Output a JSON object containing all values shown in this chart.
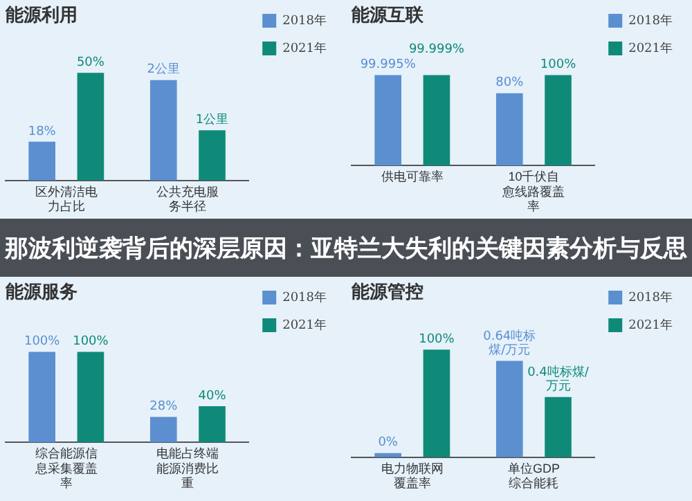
{
  "chart_data": [
    {
      "type": "bar",
      "title": "能源利用",
      "legend": "top right",
      "categories": [
        "区外清洁电力占比",
        "公共充电服务半径"
      ],
      "series": [
        {
          "name": "2018年",
          "color": "#5b8fd0",
          "values": [
            18,
            null
          ],
          "value_labels": [
            "18%",
            null
          ]
        },
        {
          "name": "2021年",
          "color": "#0f8a78",
          "values": [
            50,
            null
          ],
          "value_labels": [
            "50%",
            null
          ]
        },
        {
          "color": "#5b8fd0",
          "axis": "y2",
          "values": [
            null,
            2
          ],
          "value_labels": [
            null,
            "2公里"
          ]
        },
        {
          "color": "#0f8a78",
          "axis": "y2",
          "values": [
            null,
            1
          ],
          "value_labels": [
            null,
            "1公里"
          ]
        }
      ],
      "annotations": [
        "那波利逆袭背后的深层原因：亚特兰大失利的关键因素分析与反思"
      ]
    },
    {
      "type": "bar",
      "title": "能源互联",
      "legend": "top right",
      "categories": [
        "供电可靠率",
        "10千伏自愈线路覆盖率"
      ],
      "series": [
        {
          "name": "2018年",
          "color": "#5b8fd0",
          "values": [
            99.995,
            80
          ],
          "value_labels": [
            "99.995%",
            "80%"
          ]
        },
        {
          "name": "2021年",
          "color": "#0f8a78",
          "values": [
            99.999,
            100
          ],
          "value_labels": [
            "99.999%",
            "100%"
          ]
        }
      ]
    },
    {
      "type": "bar",
      "title": "能源服务",
      "legend": "top right",
      "categories": [
        "综合能源信息采集覆盖率",
        "电能占终端能源消费比重"
      ],
      "series": [
        {
          "name": "2018年",
          "color": "#5b8fd0",
          "values": [
            100,
            28
          ],
          "value_labels": [
            "100%",
            "28%"
          ]
        },
        {
          "name": "2021年",
          "color": "#0f8a78",
          "values": [
            100,
            40
          ],
          "value_labels": [
            "100%",
            "40%"
          ]
        }
      ]
    },
    {
      "type": "bar",
      "title": "能源管控",
      "legend": "top right",
      "categories": [
        "电力物联网覆盖率",
        "单位GDP综合能耗"
      ],
      "series": [
        {
          "name": "2018年",
          "color": "#5b8fd0",
          "values": [
            0,
            null
          ],
          "value_labels": [
            "0%",
            null
          ]
        },
        {
          "name": "2021年",
          "color": "#0f8a78",
          "values": [
            100,
            null
          ],
          "value_labels": [
            "100%",
            null
          ]
        },
        {
          "color": "#5b8fd0",
          "axis": "y2",
          "values": [
            null,
            0.64
          ],
          "value_labels": [
            null,
            "0.64吨标煤/万元"
          ]
        },
        {
          "color": "#0f8a78",
          "axis": "y2",
          "values": [
            null,
            0.4
          ],
          "value_labels": [
            null,
            "0.4吨标煤/万元"
          ]
        }
      ]
    }
  ]
}
